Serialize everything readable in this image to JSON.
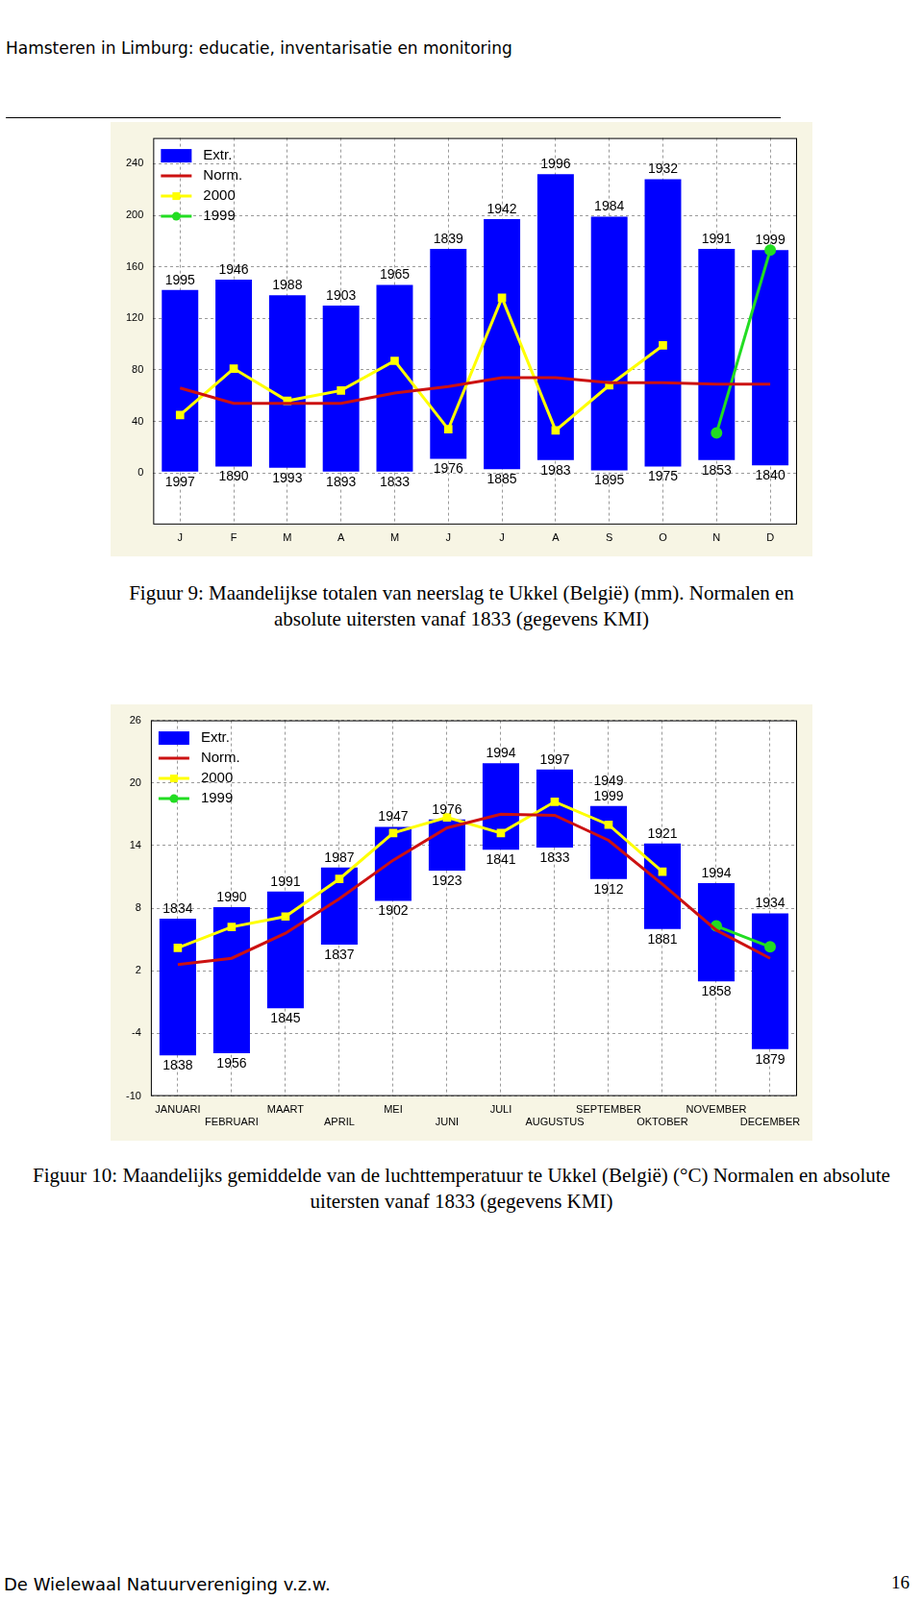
{
  "header": "Hamsteren in Limburg: educatie, inventarisatie en monitoring",
  "footer": "De Wielewaal Natuurvereniging v.z.w.",
  "page_number": 16,
  "chart_data": [
    {
      "type": "bar",
      "title": "Figuur 9: Maandelijkse totalen van neerslag te Ukkel (België) (mm). Normalen en absolute uitersten vanaf 1833 (gegevens KMI)",
      "categories": [
        "J",
        "F",
        "M",
        "A",
        "M",
        "J",
        "J",
        "A",
        "S",
        "O",
        "N",
        "D"
      ],
      "series": [
        {
          "name": "Extr.",
          "type": "bar",
          "color": "#0000ff",
          "values": [
            [
              1,
              142
            ],
            [
              5,
              150
            ],
            [
              4,
              138
            ],
            [
              1,
              130
            ],
            [
              1,
              146
            ],
            [
              11,
              174
            ],
            [
              3,
              197
            ],
            [
              10,
              232
            ],
            [
              2,
              199
            ],
            [
              5,
              228
            ],
            [
              10,
              174
            ],
            [
              6,
              173
            ]
          ]
        },
        {
          "name": "Norm.",
          "type": "line",
          "color": "#cc1111",
          "values": [
            66,
            54,
            54,
            54,
            62,
            67,
            74,
            74,
            70,
            70,
            69,
            69
          ]
        },
        {
          "name": "2000",
          "type": "line",
          "color": "#ffff00",
          "marker": "square",
          "values": [
            45,
            81,
            56,
            64,
            87,
            34,
            136,
            33,
            68,
            99,
            null,
            null
          ]
        },
        {
          "name": "1999",
          "type": "line",
          "color": "#22dd22",
          "marker": "circle",
          "values": [
            null,
            null,
            null,
            null,
            null,
            null,
            null,
            null,
            null,
            null,
            31,
            173
          ]
        }
      ],
      "annotations": {
        "top": [
          "1995",
          "1946",
          "1988",
          "1903",
          "1965",
          "1839",
          "1942",
          "1996",
          "1984",
          "1932",
          "1991",
          "1999"
        ],
        "bottom": [
          "1997",
          "1890",
          "1993",
          "1893",
          "1833",
          "1976",
          "1885",
          "1983",
          "1895",
          "1975",
          "1853",
          "1840"
        ]
      },
      "ylim": [
        -40,
        260
      ],
      "yticks": [
        0,
        40,
        80,
        120,
        160,
        200,
        240
      ],
      "grid": true,
      "legend": "top-left"
    },
    {
      "type": "bar",
      "title": "Figuur 10: Maandelijks gemiddelde van de luchttemperatuur te Ukkel (België) (°C) Normalen en absolute uitersten vanaf 1833 (gegevens KMI)",
      "categories": [
        "JANUARI",
        "FEBRUARI",
        "MAART",
        "APRIL",
        "MEI",
        "JUNI",
        "JULI",
        "AUGUSTUS",
        "SEPTEMBER",
        "OKTOBER",
        "NOVEMBER",
        "DECEMBER"
      ],
      "series": [
        {
          "name": "Extr.",
          "type": "bar",
          "color": "#0000ff",
          "values": [
            [
              -6.1,
              7.0
            ],
            [
              -5.9,
              8.1
            ],
            [
              -1.6,
              9.6
            ],
            [
              4.5,
              11.9
            ],
            [
              8.7,
              15.8
            ],
            [
              11.6,
              16.5
            ],
            [
              13.6,
              21.9
            ],
            [
              13.8,
              21.3
            ],
            [
              10.8,
              17.8
            ],
            [
              6.0,
              14.2
            ],
            [
              1.0,
              10.4
            ],
            [
              -5.5,
              7.5
            ]
          ]
        },
        {
          "name": "Norm.",
          "type": "line",
          "color": "#cc1111",
          "values": [
            2.6,
            3.2,
            5.6,
            8.9,
            12.6,
            15.7,
            17.0,
            16.9,
            14.5,
            10.3,
            5.9,
            3.2
          ]
        },
        {
          "name": "2000",
          "type": "line",
          "color": "#ffff00",
          "marker": "square",
          "values": [
            4.2,
            6.2,
            7.2,
            10.8,
            15.2,
            16.7,
            15.2,
            18.2,
            16.0,
            11.5,
            null,
            null
          ]
        },
        {
          "name": "1999",
          "type": "line",
          "color": "#22dd22",
          "marker": "circle",
          "values": [
            null,
            null,
            null,
            null,
            null,
            null,
            null,
            null,
            null,
            null,
            6.3,
            4.3
          ]
        }
      ],
      "annotations": {
        "top": [
          "1834",
          "1990",
          "1991",
          "1987",
          "1947",
          "1976",
          "1994",
          "1997",
          [
            "1949",
            "1999"
          ],
          "1921",
          "1994",
          "1934"
        ],
        "bottom": [
          "1838",
          "1956",
          "1845",
          "1837",
          "1902",
          "1923",
          "1841",
          "1833",
          "1912",
          "1881",
          "1858",
          "1879"
        ]
      },
      "ylim": [
        -10,
        26
      ],
      "yticks": [
        -10,
        -4,
        2,
        8,
        14,
        20,
        26
      ],
      "grid": true,
      "legend": "top-left"
    }
  ]
}
